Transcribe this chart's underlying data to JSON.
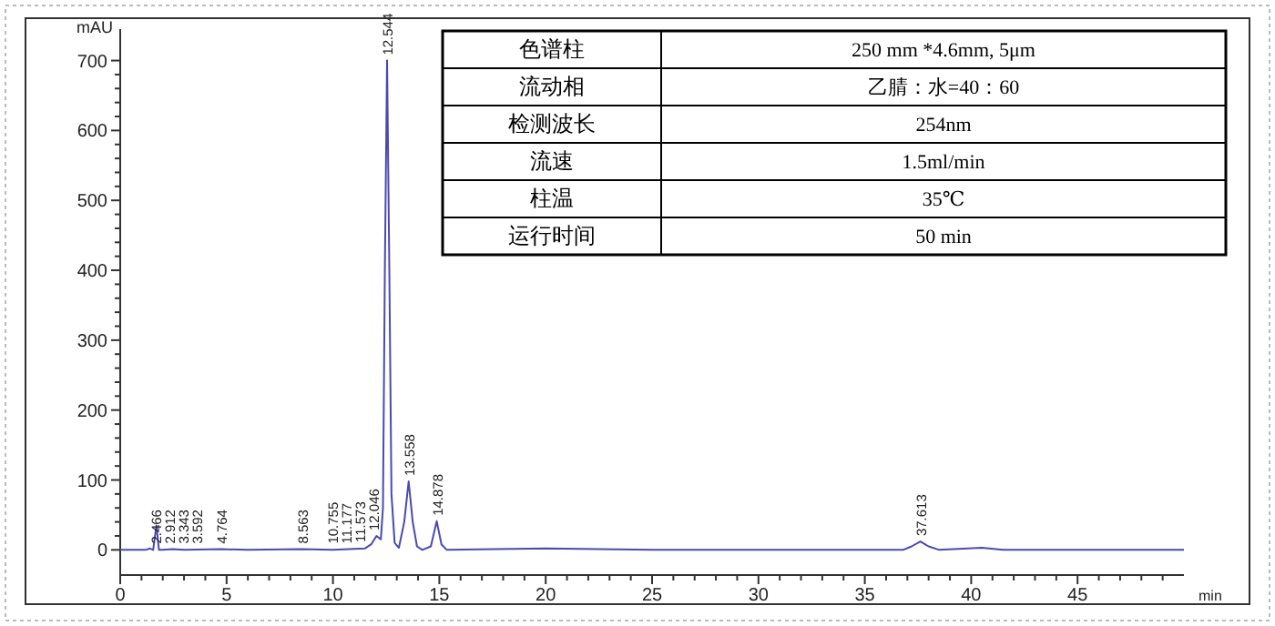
{
  "chart_data": {
    "type": "line",
    "ylabel": "mAU",
    "xlabel": "min",
    "xlim": [
      0,
      50
    ],
    "ylim": [
      -36,
      745
    ],
    "xticks": [
      0,
      5,
      10,
      15,
      20,
      25,
      30,
      35,
      40,
      45
    ],
    "yticks": [
      0,
      100,
      200,
      300,
      400,
      500,
      600,
      700
    ],
    "grid": false,
    "marker": "none",
    "line_style": "solid",
    "series": [
      {
        "color": "#4a4ab0",
        "x": [
          0,
          1.2,
          1.4,
          1.55,
          1.7,
          1.82,
          2.0,
          2.466,
          3,
          4.764,
          6,
          8.563,
          10,
          10.755,
          11.5,
          11.8,
          12.046,
          12.25,
          12.35,
          12.44,
          12.544,
          12.65,
          12.75,
          12.9,
          13.1,
          13.35,
          13.558,
          13.75,
          13.95,
          14.2,
          14.6,
          14.878,
          15.1,
          15.35,
          20,
          25,
          30,
          36.8,
          37.2,
          37.613,
          38.0,
          38.5,
          40.5,
          41.5,
          50
        ],
        "values": [
          0,
          0,
          2,
          0,
          35,
          0,
          0,
          1,
          0,
          1,
          0,
          1,
          0,
          1,
          2,
          8,
          20,
          15,
          60,
          400,
          700,
          400,
          80,
          10,
          3,
          40,
          98,
          40,
          5,
          0,
          5,
          41,
          8,
          0,
          2,
          0,
          0,
          0,
          5,
          12,
          5,
          0,
          3,
          0,
          0
        ]
      }
    ],
    "annotations": [
      {
        "text": "2.466",
        "x": 2.466,
        "y": 1
      },
      {
        "text": "2.912",
        "x": 2.912,
        "y": 1
      },
      {
        "text": "3.343",
        "x": 3.343,
        "y": 1
      },
      {
        "text": "3.592",
        "x": 3.592,
        "y": 1
      },
      {
        "text": "4.764",
        "x": 4.764,
        "y": 1
      },
      {
        "text": "8.563",
        "x": 8.563,
        "y": 1
      },
      {
        "text": "10.755",
        "x": 10.755,
        "y": 1
      },
      {
        "text": "11.177",
        "x": 11.177,
        "y": 1
      },
      {
        "text": "11.573",
        "x": 11.573,
        "y": 3
      },
      {
        "text": "12.046",
        "x": 12.046,
        "y": 20
      },
      {
        "text": "12.544",
        "x": 12.544,
        "y": 700
      },
      {
        "text": "13.558",
        "x": 13.558,
        "y": 98
      },
      {
        "text": "14.878",
        "x": 14.878,
        "y": 41
      },
      {
        "text": "37.613",
        "x": 37.613,
        "y": 12
      },
      "色谱柱",
      "250 mm *4.6mm, 5μm",
      "流动相",
      "乙腈：水=40：60",
      "检测波长",
      "254nm",
      "流速",
      "1.5ml/min",
      "柱温",
      "35℃",
      "运行时间",
      "50 min"
    ]
  }
}
